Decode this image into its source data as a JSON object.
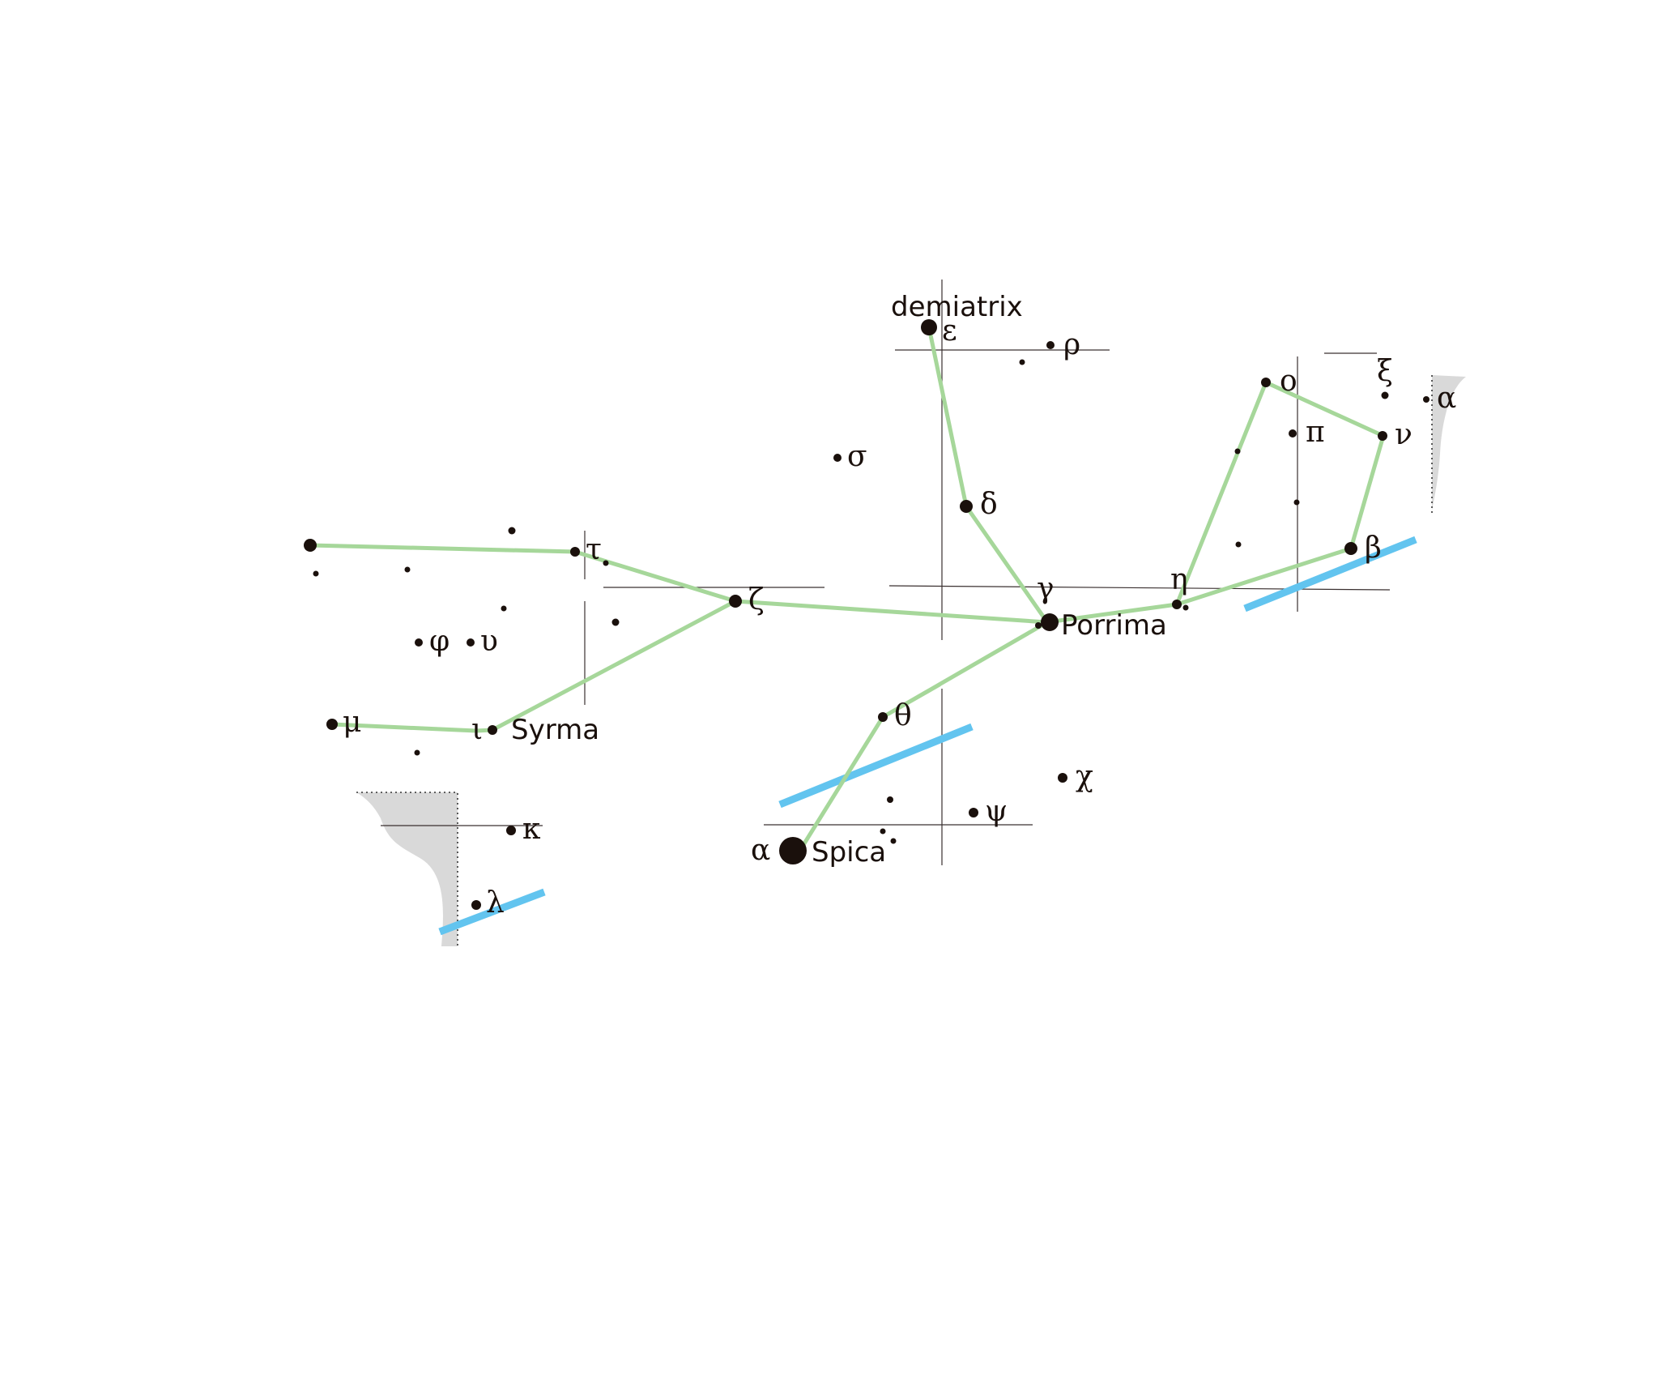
{
  "constellation": {
    "labels": {
      "epsilon": {
        "greek": "ε",
        "name": "demiatrix"
      },
      "rho": {
        "greek": "ρ"
      },
      "sigma": {
        "greek": "σ"
      },
      "delta": {
        "greek": "δ"
      },
      "gamma": {
        "greek": "γ",
        "name": "Porrima"
      },
      "eta": {
        "greek": "η"
      },
      "omicron": {
        "greek": "ο"
      },
      "xi": {
        "greek": "ξ"
      },
      "pi": {
        "greek": "π"
      },
      "nu": {
        "greek": "ν"
      },
      "beta": {
        "greek": "β"
      },
      "alpha_right": {
        "greek": "α"
      },
      "tau": {
        "greek": "τ"
      },
      "zeta": {
        "greek": "ζ"
      },
      "phi": {
        "greek": "φ"
      },
      "upsilon": {
        "greek": "υ"
      },
      "mu": {
        "greek": "μ"
      },
      "iota": {
        "greek": "ι",
        "name": "Syrma"
      },
      "kappa": {
        "greek": "κ"
      },
      "lambda": {
        "greek": "λ"
      },
      "theta": {
        "greek": "θ"
      },
      "chi": {
        "greek": "χ"
      },
      "psi": {
        "greek": "ψ"
      },
      "alpha": {
        "greek": "α",
        "name": "Spica"
      }
    }
  },
  "colors": {
    "figure_lines": "#a6d79a",
    "ecliptic": "#62c4ef",
    "stars": "#1a100c",
    "milky_way": "#d9d9d9"
  }
}
